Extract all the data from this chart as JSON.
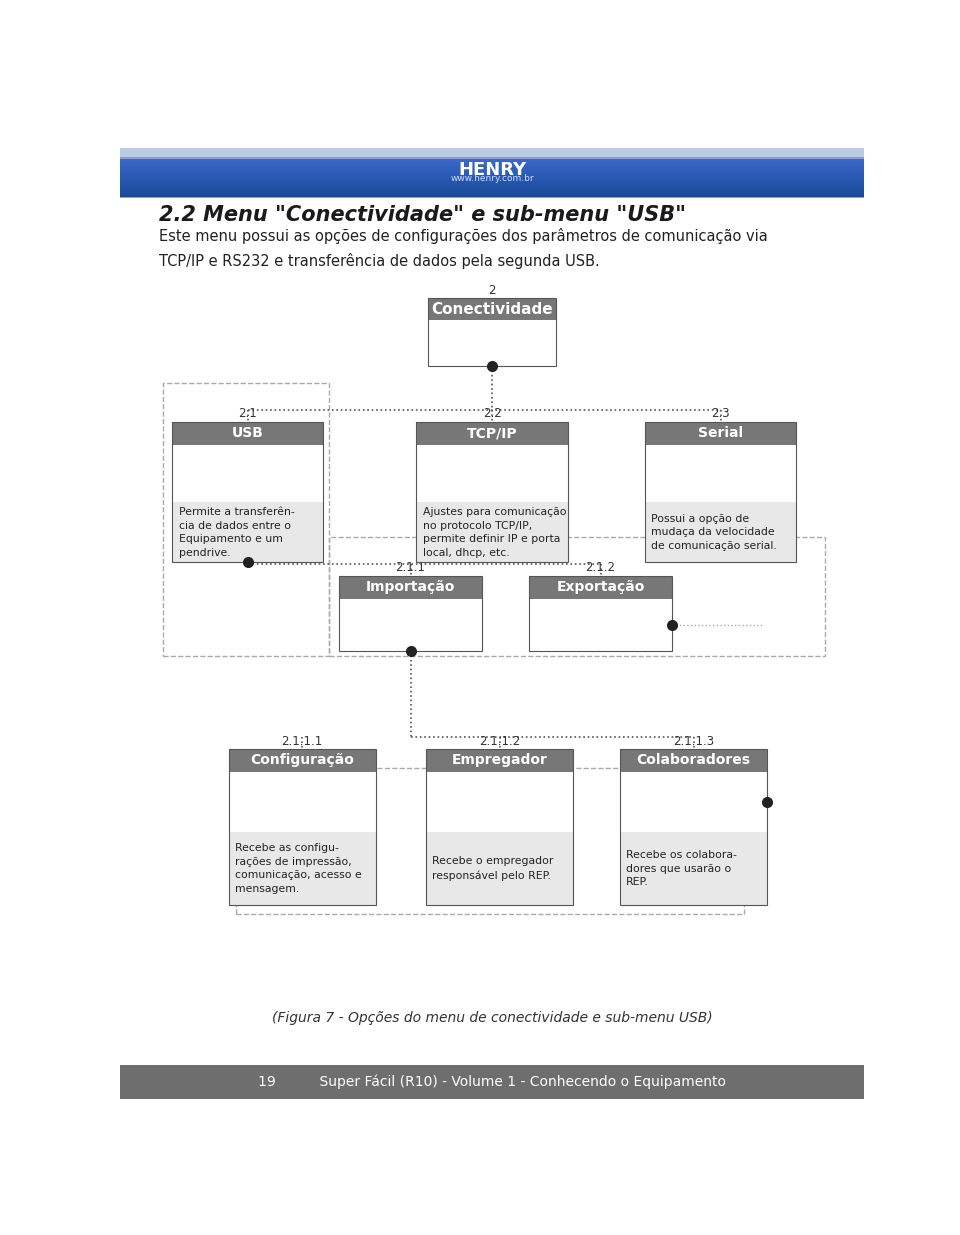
{
  "title": "2.2 Menu \"Conectividade\" e sub-menu \"USB\"",
  "intro_text": "Este menu possui as opções de configurações dos parâmetros de comunicação via\nTCP/IP e RS232 e transferência de dados pela segunda USB.",
  "header_title": "HENRY",
  "header_subtitle": "www.henry.com.br",
  "footer_text": "19          Super Fácil (R10) - Volume 1 - Conhecendo o Equipamento",
  "root_num": "2",
  "root_title": "Conectividade",
  "level1_nodes": [
    {
      "num": "2.1",
      "title": "USB",
      "desc": "Permite a transferên-\ncia de dados entre o\nEquipamento e um\npendrive."
    },
    {
      "num": "2.2",
      "title": "TCP/IP",
      "desc": "Ajustes para comunicação\nno protocolo TCP/IP,\npermite definir IP e porta\nlocal, dhcp, etc."
    },
    {
      "num": "2.3",
      "title": "Serial",
      "desc": "Possui a opção de\nmudaça da velocidade\nde comunicação serial."
    }
  ],
  "level2_nodes": [
    {
      "num": "2.1.1",
      "title": "Importação"
    },
    {
      "num": "2.1.2",
      "title": "Exportação"
    }
  ],
  "level3_nodes": [
    {
      "num": "2.1.1.1",
      "title": "Configuração",
      "desc": "Recebe as configu-\nrações de impressão,\ncomunicação, acesso e\nmensagem."
    },
    {
      "num": "2.1.1.2",
      "title": "Empregador",
      "desc": "Recebe o empregador\nresponsável pelo REP."
    },
    {
      "num": "2.1.1.3",
      "title": "Colaboradores",
      "desc": "Recebe os colabora-\ndores que usarão o\nREP."
    }
  ],
  "caption": "(Figura 7 - Opções do menu de conectividade e sub-menu USB)",
  "node_header_color": "#777777",
  "node_body_color": "#e8e8e8",
  "node_border_color": "#555555",
  "line_color": "#333333",
  "dot_color": "#222222",
  "dashed_line_color": "#888888",
  "header_blue": "#2a5db0",
  "footer_gray": "#6e6e6e"
}
